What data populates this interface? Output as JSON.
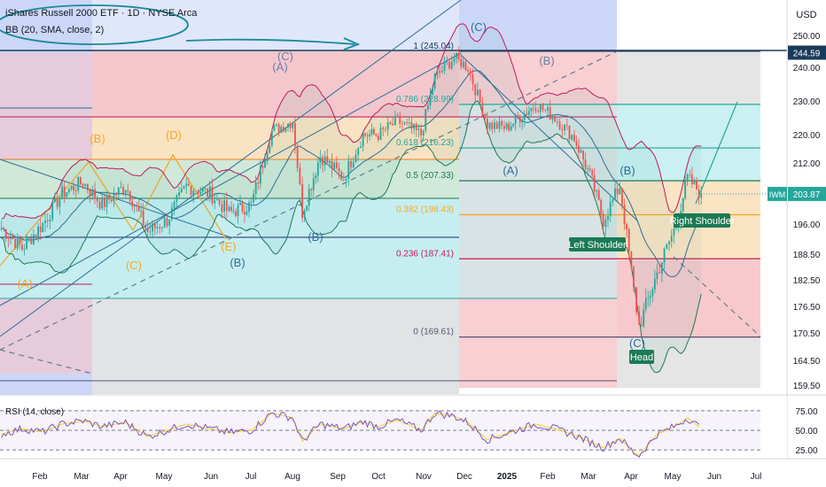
{
  "header": {
    "title": "iShares Russell 2000 ETF · 1D · NYSE Arca",
    "indicator": "BB (20, SMA, close, 2)"
  },
  "price_axis": {
    "currency": "USD",
    "ticks": [
      "250.00",
      "244.59",
      "240.00",
      "230.00",
      "220.00",
      "212.00",
      "203.87",
      "196.00",
      "188.50",
      "182.50",
      "176.50",
      "170.50",
      "164.50",
      "159.50"
    ],
    "last_price": "203.87",
    "last_tag": "IWM",
    "level_tag": "244.59"
  },
  "rsi_panel": {
    "label": "RSI (14, close)",
    "ticks": [
      "75.00",
      "50.00",
      "25.00"
    ]
  },
  "time_axis": {
    "labels": [
      "Feb",
      "Mar",
      "Apr",
      "May",
      "Jun",
      "Jul",
      "Aug",
      "Sep",
      "Oct",
      "Nov",
      "Dec",
      "2025",
      "Feb",
      "Mar",
      "Apr",
      "May",
      "Jun",
      "Jul"
    ]
  },
  "fib_labels": [
    "1 (245.04)",
    "0.786 (228.99)",
    "0.618 (216.23)",
    "0.5 (207.33)",
    "0.382 (198.43)",
    "0.236 (187.41)",
    "0 (169.61)"
  ],
  "wave_labels": [
    "(A)",
    "(B)",
    "(C)",
    "(D)",
    "(E)",
    "(A)",
    "(B)",
    "(C)",
    "(B)",
    "(C)",
    "(A)",
    "(B)",
    "(B)",
    "(C)"
  ],
  "pattern_labels": {
    "left_shoulder": "Left Shoulder",
    "head": "Head",
    "right_shoulder": "Right Shoulder"
  },
  "colors": {
    "up": "#26a69a",
    "down": "#ef5350",
    "blue_zone": "#c7d3f7",
    "red_zone": "#f6c3c8",
    "gray_zone": "#e2e2e2",
    "orange_zone": "#fbe3c0",
    "green_zone": "#cfe9d7",
    "cyan_zone": "#c4eef0",
    "bb_band": "#c2185b",
    "bb_basis": "#2a6f97",
    "teal_line": "#26a69a",
    "fib_orange": "#f5a623",
    "rsi_line": "#7e57c2",
    "rsi_ma": "#f5d020"
  },
  "chart_data": {
    "type": "candlestick",
    "title": "iShares Russell 2000 ETF · 1D · NYSE Arca",
    "ylim": [
      157,
      253
    ],
    "y_ticks": [
      159.5,
      164.5,
      170.5,
      176.5,
      182.5,
      188.5,
      196,
      203.87,
      212,
      220,
      230,
      240,
      244.59,
      250
    ],
    "fibonacci": [
      {
        "ratio": "1",
        "price": 245.04
      },
      {
        "ratio": "0.786",
        "price": 228.99
      },
      {
        "ratio": "0.618",
        "price": 216.23
      },
      {
        "ratio": "0.5",
        "price": 207.33
      },
      {
        "ratio": "0.382",
        "price": 198.43
      },
      {
        "ratio": "0.236",
        "price": 187.41
      },
      {
        "ratio": "0",
        "price": 169.61
      }
    ],
    "close_path": [
      {
        "date": "2024-01-02",
        "close": 195
      },
      {
        "date": "2024-01-17",
        "close": 190
      },
      {
        "date": "2024-02-01",
        "close": 196
      },
      {
        "date": "2024-02-15",
        "close": 204
      },
      {
        "date": "2024-03-01",
        "close": 207
      },
      {
        "date": "2024-03-15",
        "close": 201
      },
      {
        "date": "2024-04-01",
        "close": 206
      },
      {
        "date": "2024-04-17",
        "close": 194
      },
      {
        "date": "2024-05-01",
        "close": 197
      },
      {
        "date": "2024-05-15",
        "close": 206
      },
      {
        "date": "2024-06-01",
        "close": 204
      },
      {
        "date": "2024-06-15",
        "close": 199
      },
      {
        "date": "2024-07-01",
        "close": 201
      },
      {
        "date": "2024-07-16",
        "close": 221
      },
      {
        "date": "2024-07-31",
        "close": 224
      },
      {
        "date": "2024-08-07",
        "close": 199
      },
      {
        "date": "2024-08-20",
        "close": 214
      },
      {
        "date": "2024-09-06",
        "close": 208
      },
      {
        "date": "2024-09-20",
        "close": 220
      },
      {
        "date": "2024-10-01",
        "close": 220
      },
      {
        "date": "2024-10-15",
        "close": 224
      },
      {
        "date": "2024-11-01",
        "close": 220
      },
      {
        "date": "2024-11-11",
        "close": 237
      },
      {
        "date": "2024-11-25",
        "close": 243
      },
      {
        "date": "2024-12-05",
        "close": 240
      },
      {
        "date": "2024-12-19",
        "close": 223
      },
      {
        "date": "2025-01-02",
        "close": 222
      },
      {
        "date": "2025-01-23",
        "close": 229
      },
      {
        "date": "2025-02-06",
        "close": 225
      },
      {
        "date": "2025-02-20",
        "close": 219
      },
      {
        "date": "2025-03-05",
        "close": 207
      },
      {
        "date": "2025-03-13",
        "close": 197
      },
      {
        "date": "2025-03-25",
        "close": 206
      },
      {
        "date": "2025-04-04",
        "close": 180
      },
      {
        "date": "2025-04-08",
        "close": 172
      },
      {
        "date": "2025-04-21",
        "close": 184
      },
      {
        "date": "2025-05-05",
        "close": 196
      },
      {
        "date": "2025-05-13",
        "close": 208
      },
      {
        "date": "2025-05-23",
        "close": 203.87
      }
    ],
    "rsi": {
      "ylim": [
        15,
        85
      ],
      "ticks": [
        75,
        50,
        25
      ],
      "values": [
        45,
        52,
        48,
        58,
        62,
        55,
        60,
        42,
        50,
        58,
        52,
        47,
        50,
        72,
        66,
        36,
        58,
        52,
        61,
        55,
        63,
        50,
        72,
        68,
        60,
        38,
        46,
        58,
        52,
        44,
        34,
        28,
        40,
        22,
        18,
        45,
        56,
        66,
        52
      ]
    }
  }
}
